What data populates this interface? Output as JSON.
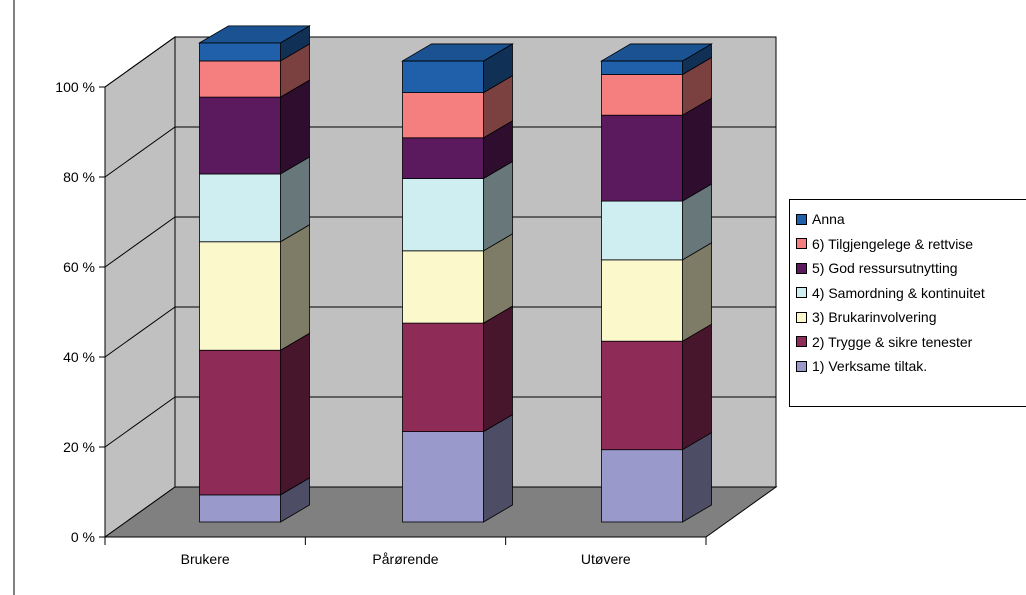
{
  "chart_data": {
    "type": "bar",
    "stacked": true,
    "three_d": true,
    "categories": [
      "Brukere",
      "Pårørende",
      "Utøvere"
    ],
    "ylim": [
      0,
      100
    ],
    "yticks": [
      "0 %",
      "20 %",
      "40 %",
      "60 %",
      "80 %",
      "100 %"
    ],
    "series": [
      {
        "name": "1) Verksame tiltak.",
        "color": "#9999cc",
        "values": [
          6,
          20,
          16
        ]
      },
      {
        "name": "2) Trygge & sikre tenester",
        "color": "#8e2c57",
        "values": [
          32,
          24,
          24
        ]
      },
      {
        "name": "3) Brukarinvolvering",
        "color": "#fbf8cc",
        "values": [
          24,
          16,
          18
        ]
      },
      {
        "name": "4) Samordning & kontinuitet",
        "color": "#cfeef2",
        "values": [
          15,
          16,
          13
        ]
      },
      {
        "name": "5) God ressursutnytting",
        "color": "#5b1a5e",
        "values": [
          17,
          9,
          19
        ]
      },
      {
        "name": "6) Tilgjengelege & rettvise",
        "color": "#f57f7f",
        "values": [
          8,
          10,
          9
        ]
      },
      {
        "name": "Anna",
        "color": "#2060aa",
        "values": [
          4,
          7,
          3
        ]
      }
    ],
    "legend_position": "right",
    "grid": true
  }
}
